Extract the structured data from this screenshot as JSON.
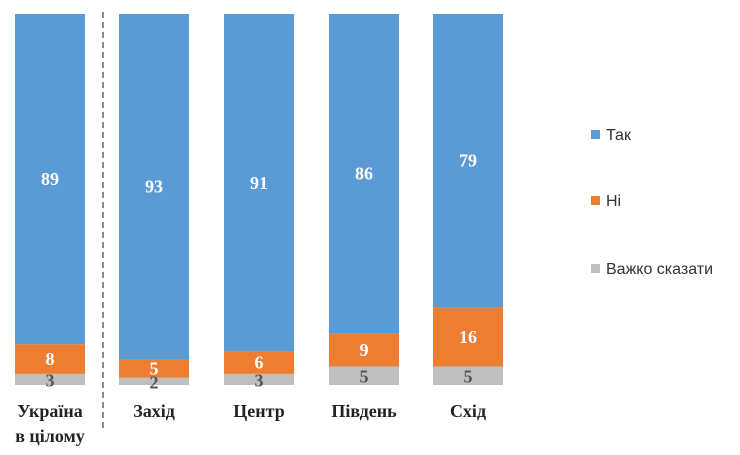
{
  "chart_data": {
    "type": "bar",
    "stacked": true,
    "percent_stacked": true,
    "title": "",
    "xlabel": "",
    "ylabel": "",
    "ylim": [
      0,
      100
    ],
    "categories": [
      [
        "Україна",
        "в цілому"
      ],
      [
        "Захід"
      ],
      [
        "Центр"
      ],
      [
        "Південь"
      ],
      [
        "Схід"
      ]
    ],
    "series": [
      {
        "name": "Так",
        "color": "#5B9BD5",
        "label_color": "#ffffff",
        "values": [
          89,
          93,
          91,
          86,
          79
        ]
      },
      {
        "name": "Ні",
        "color": "#ED7D31",
        "label_color": "#ffffff",
        "values": [
          8,
          5,
          6,
          9,
          16
        ]
      },
      {
        "name": "Важко сказати",
        "color": "#BFBFBF",
        "label_color": "#555555",
        "values": [
          3,
          2,
          3,
          5,
          5
        ]
      }
    ],
    "legend": {
      "position": "right"
    },
    "separator_after_category": 0
  }
}
